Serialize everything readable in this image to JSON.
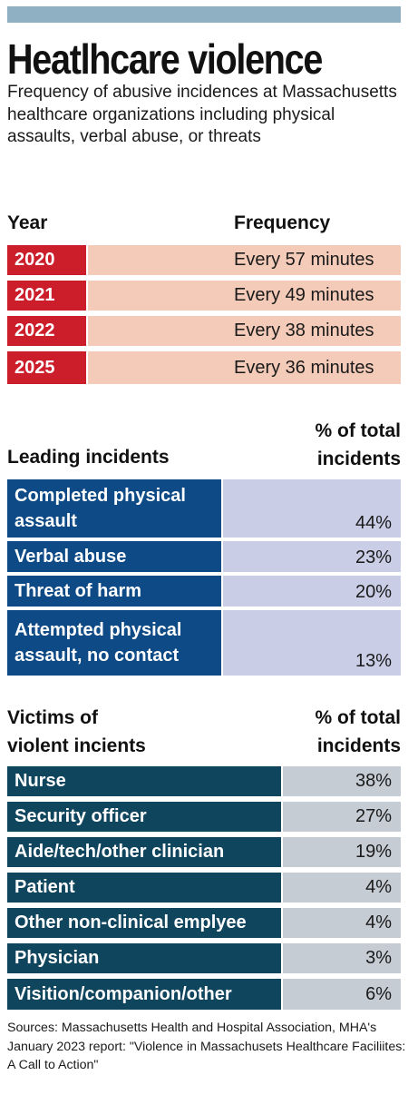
{
  "title": "Heatlhcare violence",
  "subtitle": "Frequency of abusive incidences at Massachusetts healthcare organizations including physical assaults, verbal abuse, or threats",
  "frequency_table": {
    "header_year": "Year",
    "header_frequency": "Frequency",
    "rows": [
      {
        "year": "2020",
        "frequency": "Every 57 minutes"
      },
      {
        "year": "2021",
        "frequency": "Every 49 minutes"
      },
      {
        "year": "2022",
        "frequency": "Every 38 minutes"
      },
      {
        "year": "2025",
        "frequency": "Every 36 minutes"
      }
    ]
  },
  "incidents_table": {
    "header_label": "Leading incidents",
    "header_value_line1": "% of total",
    "header_value_line2": "incidents",
    "rows": [
      {
        "label": "Completed physical assault",
        "value": "44%"
      },
      {
        "label": "Verbal abuse",
        "value": "23%"
      },
      {
        "label": "Threat of harm",
        "value": "20%"
      },
      {
        "label": "Attempted physical assault, no contact",
        "value": "13%"
      }
    ]
  },
  "victims_table": {
    "header_label_line1": "Victims of",
    "header_label_line2": "violent incients",
    "header_value_line1": "% of total",
    "header_value_line2": "incidents",
    "rows": [
      {
        "label": "Nurse",
        "value": "38%"
      },
      {
        "label": "Security officer",
        "value": "27%"
      },
      {
        "label": "Aide/tech/other clinician",
        "value": "19%"
      },
      {
        "label": "Patient",
        "value": "4%"
      },
      {
        "label": "Other non-clinical emplyee",
        "value": "4%"
      },
      {
        "label": "Physician",
        "value": "3%"
      },
      {
        "label": "Visition/companion/other",
        "value": "6%"
      }
    ]
  },
  "sources": "Sources: Massachusetts Health and Hospital Association, MHA's January 2023 report: \"Violence in Massachusets Healthcare Faciliites: A Call to Action\"",
  "colors": {
    "top_bar": "#8fb0c3",
    "year_label": "#cc1d2a",
    "year_value": "#f4cbb8",
    "incident_label": "#0d4a86",
    "incident_value": "#c9cde6",
    "victim_label": "#10455e",
    "victim_value": "#c6ccd4"
  }
}
